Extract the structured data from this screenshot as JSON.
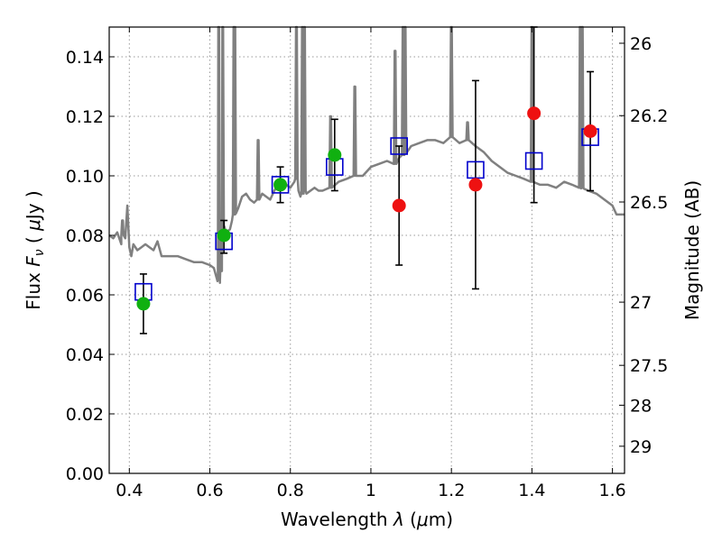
{
  "chart_data": {
    "type": "scatter",
    "xlabel": "Wavelength  λ (μm)",
    "ylabel": "Flux  F_ν  ( μJy )",
    "ylabel_parts": {
      "prefix": "Flux  ",
      "var": "F",
      "sub": "ν",
      "mid": "  (  ",
      "unit_var": "μ",
      "unit": "Jy  )"
    },
    "xlabel_parts": {
      "prefix": "Wavelength  ",
      "var": "λ",
      "mid": " (",
      "unit_var": "μ",
      "unit": "m)"
    },
    "y2label": "Magnitude (AB)",
    "xlim": [
      0.35,
      1.63
    ],
    "ylim": [
      0,
      0.15
    ],
    "grid": true,
    "x_ticks": [
      0.4,
      0.6,
      0.8,
      1.0,
      1.2,
      1.4,
      1.6
    ],
    "x_tick_labels": [
      "0.4",
      "0.6",
      "0.8",
      "1",
      "1.2",
      "1.4",
      "1.6"
    ],
    "y_ticks": [
      0,
      0.02,
      0.04,
      0.06,
      0.08,
      0.1,
      0.12,
      0.14
    ],
    "y_tick_labels": [
      "0.00",
      "0.02",
      "0.04",
      "0.06",
      "0.08",
      "0.10",
      "0.12",
      "0.14"
    ],
    "y2_ticks": [
      {
        "label": "26",
        "mag": 26.0
      },
      {
        "label": "26.2",
        "mag": 26.2
      },
      {
        "label": "26.5",
        "mag": 26.5
      },
      {
        "label": "27",
        "mag": 27.0
      },
      {
        "label": "27.5",
        "mag": 27.5
      },
      {
        "label": "28",
        "mag": 28.0
      },
      {
        "label": "29",
        "mag": 29.0
      }
    ],
    "colors": {
      "spectrum": "#808080",
      "model": "#0000cc",
      "green": "#10b010",
      "red": "#ee1111",
      "errorbar": "#000000",
      "grid": "#9a9a9a"
    },
    "series": [
      {
        "kind": "model-boxes",
        "x": [
          0.435,
          0.635,
          0.775,
          0.91,
          1.07,
          1.26,
          1.405,
          1.545
        ],
        "y": [
          0.061,
          0.078,
          0.097,
          0.103,
          0.11,
          0.102,
          0.105,
          0.113
        ]
      },
      {
        "kind": "observed-green",
        "x": [
          0.435,
          0.635,
          0.775,
          0.91
        ],
        "y": [
          0.057,
          0.08,
          0.097,
          0.107
        ],
        "err_low": [
          0.047,
          0.074,
          0.091,
          0.095
        ],
        "err_high": [
          0.067,
          0.085,
          0.103,
          0.119
        ]
      },
      {
        "kind": "observed-red",
        "x": [
          1.07,
          1.26,
          1.405,
          1.545
        ],
        "y": [
          0.09,
          0.097,
          0.121,
          0.115
        ],
        "err_low": [
          0.07,
          0.062,
          0.091,
          0.095
        ],
        "err_high": [
          0.11,
          0.132,
          0.15,
          0.135
        ]
      },
      {
        "kind": "spectrum",
        "x": [
          0.35,
          0.36,
          0.37,
          0.38,
          0.385,
          0.39,
          0.395,
          0.4,
          0.405,
          0.41,
          0.42,
          0.43,
          0.44,
          0.45,
          0.46,
          0.47,
          0.48,
          0.5,
          0.52,
          0.54,
          0.56,
          0.58,
          0.6,
          0.61,
          0.62,
          0.625,
          0.63,
          0.632,
          0.636,
          0.64,
          0.65,
          0.655,
          0.66,
          0.67,
          0.68,
          0.69,
          0.7,
          0.71,
          0.72,
          0.73,
          0.74,
          0.75,
          0.76,
          0.77,
          0.78,
          0.79,
          0.8,
          0.81,
          0.815,
          0.82,
          0.825,
          0.83,
          0.835,
          0.84,
          0.85,
          0.86,
          0.87,
          0.88,
          0.9,
          0.92,
          0.94,
          0.96,
          0.98,
          1.0,
          1.02,
          1.04,
          1.06,
          1.07,
          1.08,
          1.09,
          1.1,
          1.12,
          1.14,
          1.16,
          1.18,
          1.2,
          1.22,
          1.24,
          1.26,
          1.28,
          1.3,
          1.32,
          1.34,
          1.36,
          1.38,
          1.4,
          1.42,
          1.44,
          1.46,
          1.48,
          1.5,
          1.52,
          1.54,
          1.56,
          1.58,
          1.6,
          1.61,
          1.63
        ],
        "y": [
          0.08,
          0.079,
          0.081,
          0.077,
          0.082,
          0.079,
          0.09,
          0.076,
          0.073,
          0.077,
          0.075,
          0.076,
          0.077,
          0.076,
          0.075,
          0.078,
          0.073,
          0.073,
          0.073,
          0.072,
          0.071,
          0.071,
          0.07,
          0.069,
          0.065,
          0.064,
          0.068,
          0.08,
          0.083,
          0.081,
          0.082,
          0.085,
          0.087,
          0.089,
          0.093,
          0.094,
          0.092,
          0.091,
          0.092,
          0.094,
          0.093,
          0.092,
          0.095,
          0.097,
          0.098,
          0.097,
          0.096,
          0.098,
          0.099,
          0.095,
          0.093,
          0.094,
          0.095,
          0.094,
          0.095,
          0.096,
          0.095,
          0.095,
          0.096,
          0.098,
          0.099,
          0.1,
          0.1,
          0.103,
          0.104,
          0.105,
          0.104,
          0.106,
          0.107,
          0.108,
          0.11,
          0.111,
          0.112,
          0.112,
          0.111,
          0.113,
          0.111,
          0.112,
          0.11,
          0.108,
          0.105,
          0.103,
          0.101,
          0.1,
          0.099,
          0.098,
          0.097,
          0.097,
          0.096,
          0.098,
          0.097,
          0.096,
          0.095,
          0.094,
          0.092,
          0.09,
          0.087,
          0.087
        ],
        "emission_lines": [
          {
            "x": 0.383,
            "peak": 0.085
          },
          {
            "x": 0.622,
            "peak": 0.15
          },
          {
            "x": 0.632,
            "peak": 0.15
          },
          {
            "x": 0.66,
            "peak": 0.15
          },
          {
            "x": 0.662,
            "peak": 0.15
          },
          {
            "x": 0.72,
            "peak": 0.112
          },
          {
            "x": 0.815,
            "peak": 0.15
          },
          {
            "x": 0.83,
            "peak": 0.15
          },
          {
            "x": 0.835,
            "peak": 0.15
          },
          {
            "x": 0.9,
            "peak": 0.12
          },
          {
            "x": 0.96,
            "peak": 0.13
          },
          {
            "x": 1.06,
            "peak": 0.142
          },
          {
            "x": 1.08,
            "peak": 0.15
          },
          {
            "x": 1.085,
            "peak": 0.15
          },
          {
            "x": 1.2,
            "peak": 0.15
          },
          {
            "x": 1.24,
            "peak": 0.118
          },
          {
            "x": 1.4,
            "peak": 0.15
          },
          {
            "x": 1.52,
            "peak": 0.15
          },
          {
            "x": 1.525,
            "peak": 0.15
          }
        ]
      }
    ]
  }
}
